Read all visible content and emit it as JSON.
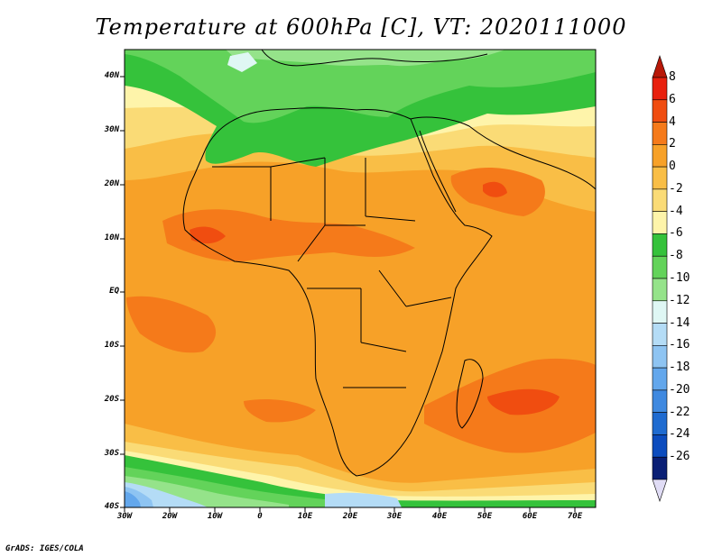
{
  "title": "Temperature at 600hPa [C], VT: 2020111000",
  "footer": "GrADS: IGES/COLA",
  "map": {
    "lat_labels": [
      "40N",
      "30N",
      "20N",
      "10N",
      "EQ",
      "10S",
      "20S",
      "30S",
      "40S"
    ],
    "lon_labels": [
      "30W",
      "20W",
      "10W",
      "0",
      "10E",
      "20E",
      "30E",
      "40E",
      "50E",
      "60E",
      "70E"
    ]
  },
  "colorbar": {
    "labels": [
      "8",
      "6",
      "4",
      "2",
      "0",
      "-2",
      "-4",
      "-6",
      "-8",
      "-10",
      "-12",
      "-14",
      "-16",
      "-18",
      "-20",
      "-22",
      "-24",
      "-26"
    ],
    "colors": [
      "#e8200e",
      "#f04d10",
      "#f57a1a",
      "#f7a128",
      "#f9be46",
      "#fadb76",
      "#fef4aa",
      "#35c23b",
      "#63d35a",
      "#95e38a",
      "#dff7f4",
      "#b4dcf6",
      "#8ec4f2",
      "#63a7ec",
      "#3f89e0",
      "#1f6bd0",
      "#0c4cbe",
      "#0a1f75"
    ],
    "top_arrow_color": "#b81808",
    "bottom_arrow_color": "#e0dcf5"
  },
  "chart_data": {
    "type": "heatmap",
    "title": "Temperature at 600hPa [C], VT: 2020111000",
    "variable": "Temperature at 600hPa",
    "units": "C",
    "valid_time": "2020111000",
    "lon_range": [
      -30,
      75
    ],
    "lat_range": [
      -40,
      44
    ],
    "lon_ticks": [
      -30,
      -20,
      -10,
      0,
      10,
      20,
      30,
      40,
      50,
      60,
      70
    ],
    "lat_ticks": [
      40,
      30,
      20,
      10,
      0,
      -10,
      -20,
      -30,
      -40
    ],
    "contour_levels": [
      8,
      6,
      4,
      2,
      0,
      -2,
      -4,
      -6,
      -8,
      -10,
      -12,
      -14,
      -16,
      -18,
      -20,
      -22,
      -24,
      -26
    ]
  }
}
